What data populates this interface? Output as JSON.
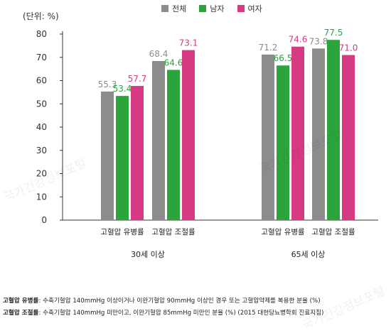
{
  "unit_label": "(단위: %)",
  "legend": [
    {
      "label": "전체",
      "color": "#8c8c8c"
    },
    {
      "label": "남자",
      "color": "#2ca43c"
    },
    {
      "label": "여자",
      "color": "#d63a83"
    }
  ],
  "chart_data": {
    "type": "bar",
    "ylim": [
      0,
      80
    ],
    "yticks": [
      0,
      10,
      20,
      30,
      40,
      50,
      60,
      70,
      80
    ],
    "groups": [
      "30세 이상",
      "65세 이상"
    ],
    "categories": [
      "고혈압 유병률",
      "고혈압 조절률",
      "고혈압 유병률",
      "고혈압 조절률"
    ],
    "category_group": [
      0,
      0,
      1,
      1
    ],
    "series": [
      {
        "name": "전체",
        "color": "#8c8c8c",
        "label_color": "#8c8c8c",
        "values": [
          55.3,
          68.4,
          71.2,
          73.8
        ]
      },
      {
        "name": "남자",
        "color": "#2ca43c",
        "label_color": "#2ca43c",
        "values": [
          53.4,
          64.6,
          66.5,
          77.5
        ]
      },
      {
        "name": "여자",
        "color": "#d63a83",
        "label_color": "#d63a83",
        "values": [
          57.7,
          73.1,
          74.6,
          71.0
        ]
      }
    ]
  },
  "notes": [
    {
      "term": "고혈압 유병률",
      "text": ": 수축기혈압 140mmHg 이상이거나 이완기혈압 90mmHg 이상인 경우 또는 고혈압약제를 복용한 분율 (%)"
    },
    {
      "term": "고혈압 조절률",
      "text": ": 수축기혈압 140mmHg 미만이고, 이완기혈압 85mmHg 미만인 분율 (%) (2015 대한당뇨병학회 진료지침)"
    }
  ],
  "watermark_text": "국가건강정보포털"
}
